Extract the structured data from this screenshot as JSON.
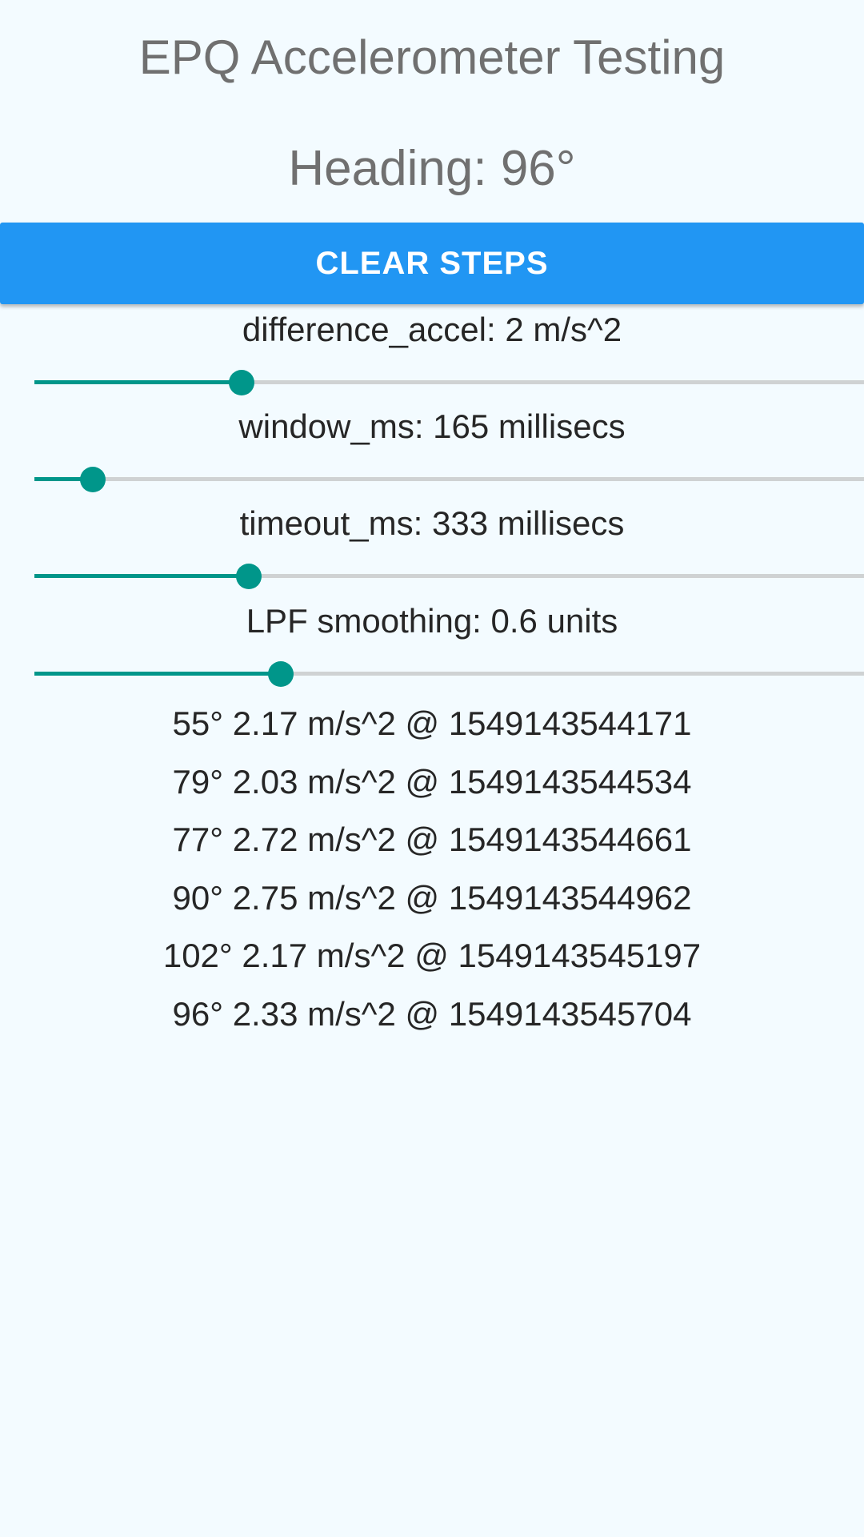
{
  "app": {
    "title": "EPQ Accelerometer Testing",
    "heading": "Heading: 96°"
  },
  "actions": {
    "clear_label": "CLEAR STEPS"
  },
  "params": [
    {
      "label": "difference_accel: 2 m/s^2",
      "fraction": 0.25
    },
    {
      "label": "window_ms: 165 millisecs",
      "fraction": 0.07
    },
    {
      "label": "timeout_ms: 333 millisecs",
      "fraction": 0.258
    },
    {
      "label": "LPF smoothing: 0.6 units",
      "fraction": 0.297
    }
  ],
  "steps": [
    "55° 2.17 m/s^2 @ 1549143544171",
    "79° 2.03 m/s^2 @ 1549143544534",
    "77° 2.72 m/s^2 @ 1549143544661",
    "90° 2.75 m/s^2 @ 1549143544962",
    "102° 2.17 m/s^2 @ 1549143545197",
    "96° 2.33 m/s^2 @ 1549143545704"
  ],
  "colors": {
    "background": "#f3fbff",
    "button": "#2196f3",
    "slider_accent": "#00968a",
    "slider_track": "#cfd2d3"
  }
}
